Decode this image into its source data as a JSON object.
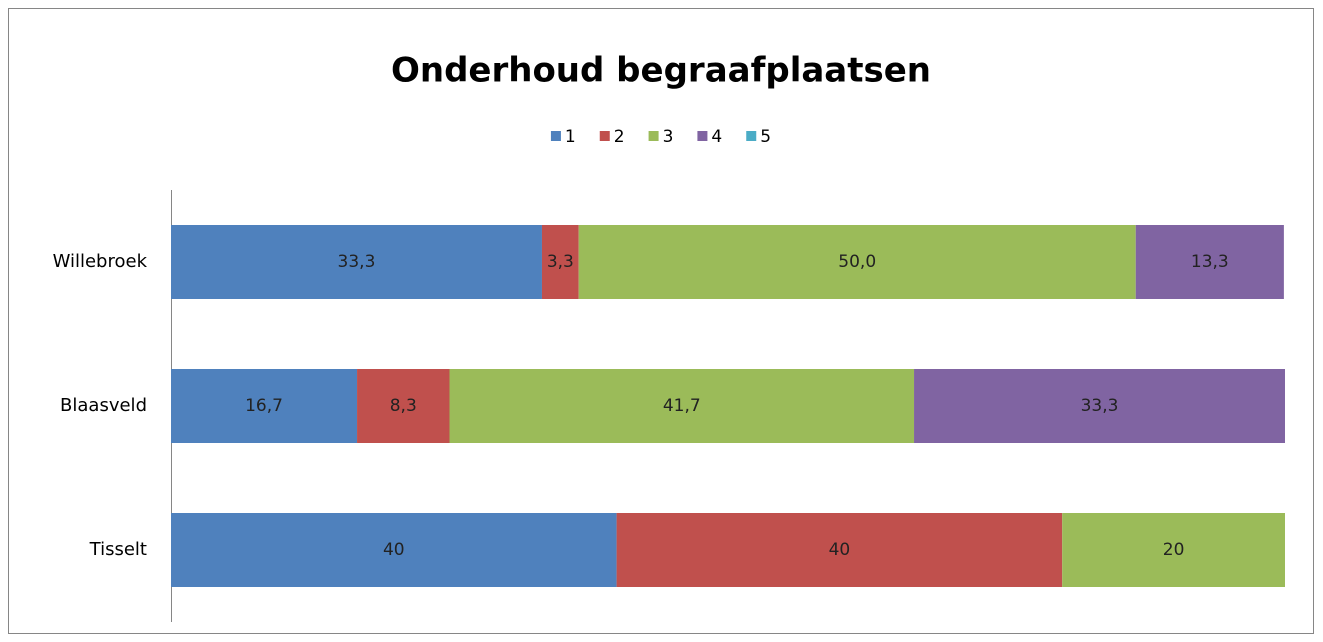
{
  "chart_data": {
    "type": "bar",
    "orientation": "horizontal",
    "stacked": true,
    "title": "Onderhoud begraafplaatsen",
    "categories": [
      "Willebroek",
      "Blaasveld",
      "Tisselt"
    ],
    "xlim": [
      0,
      100
    ],
    "legend": "top",
    "series": [
      {
        "name": "1",
        "color": "#4f81bd",
        "values": [
          33.3,
          16.7,
          40
        ],
        "value_labels": [
          "33,3",
          "16,7",
          "40"
        ]
      },
      {
        "name": "2",
        "color": "#c0504d",
        "values": [
          3.3,
          8.3,
          40
        ],
        "value_labels": [
          "3,3",
          "8,3",
          "40"
        ]
      },
      {
        "name": "3",
        "color": "#9bbb59",
        "values": [
          50.0,
          41.7,
          20
        ],
        "value_labels": [
          "50,0",
          "41,7",
          "20"
        ]
      },
      {
        "name": "4",
        "color": "#8064a2",
        "values": [
          13.3,
          33.3,
          null
        ],
        "value_labels": [
          "13,3",
          "33,3",
          null
        ]
      },
      {
        "name": "5",
        "color": "#4bacc6",
        "values": [
          null,
          null,
          null
        ],
        "value_labels": [
          null,
          null,
          null
        ]
      }
    ]
  }
}
